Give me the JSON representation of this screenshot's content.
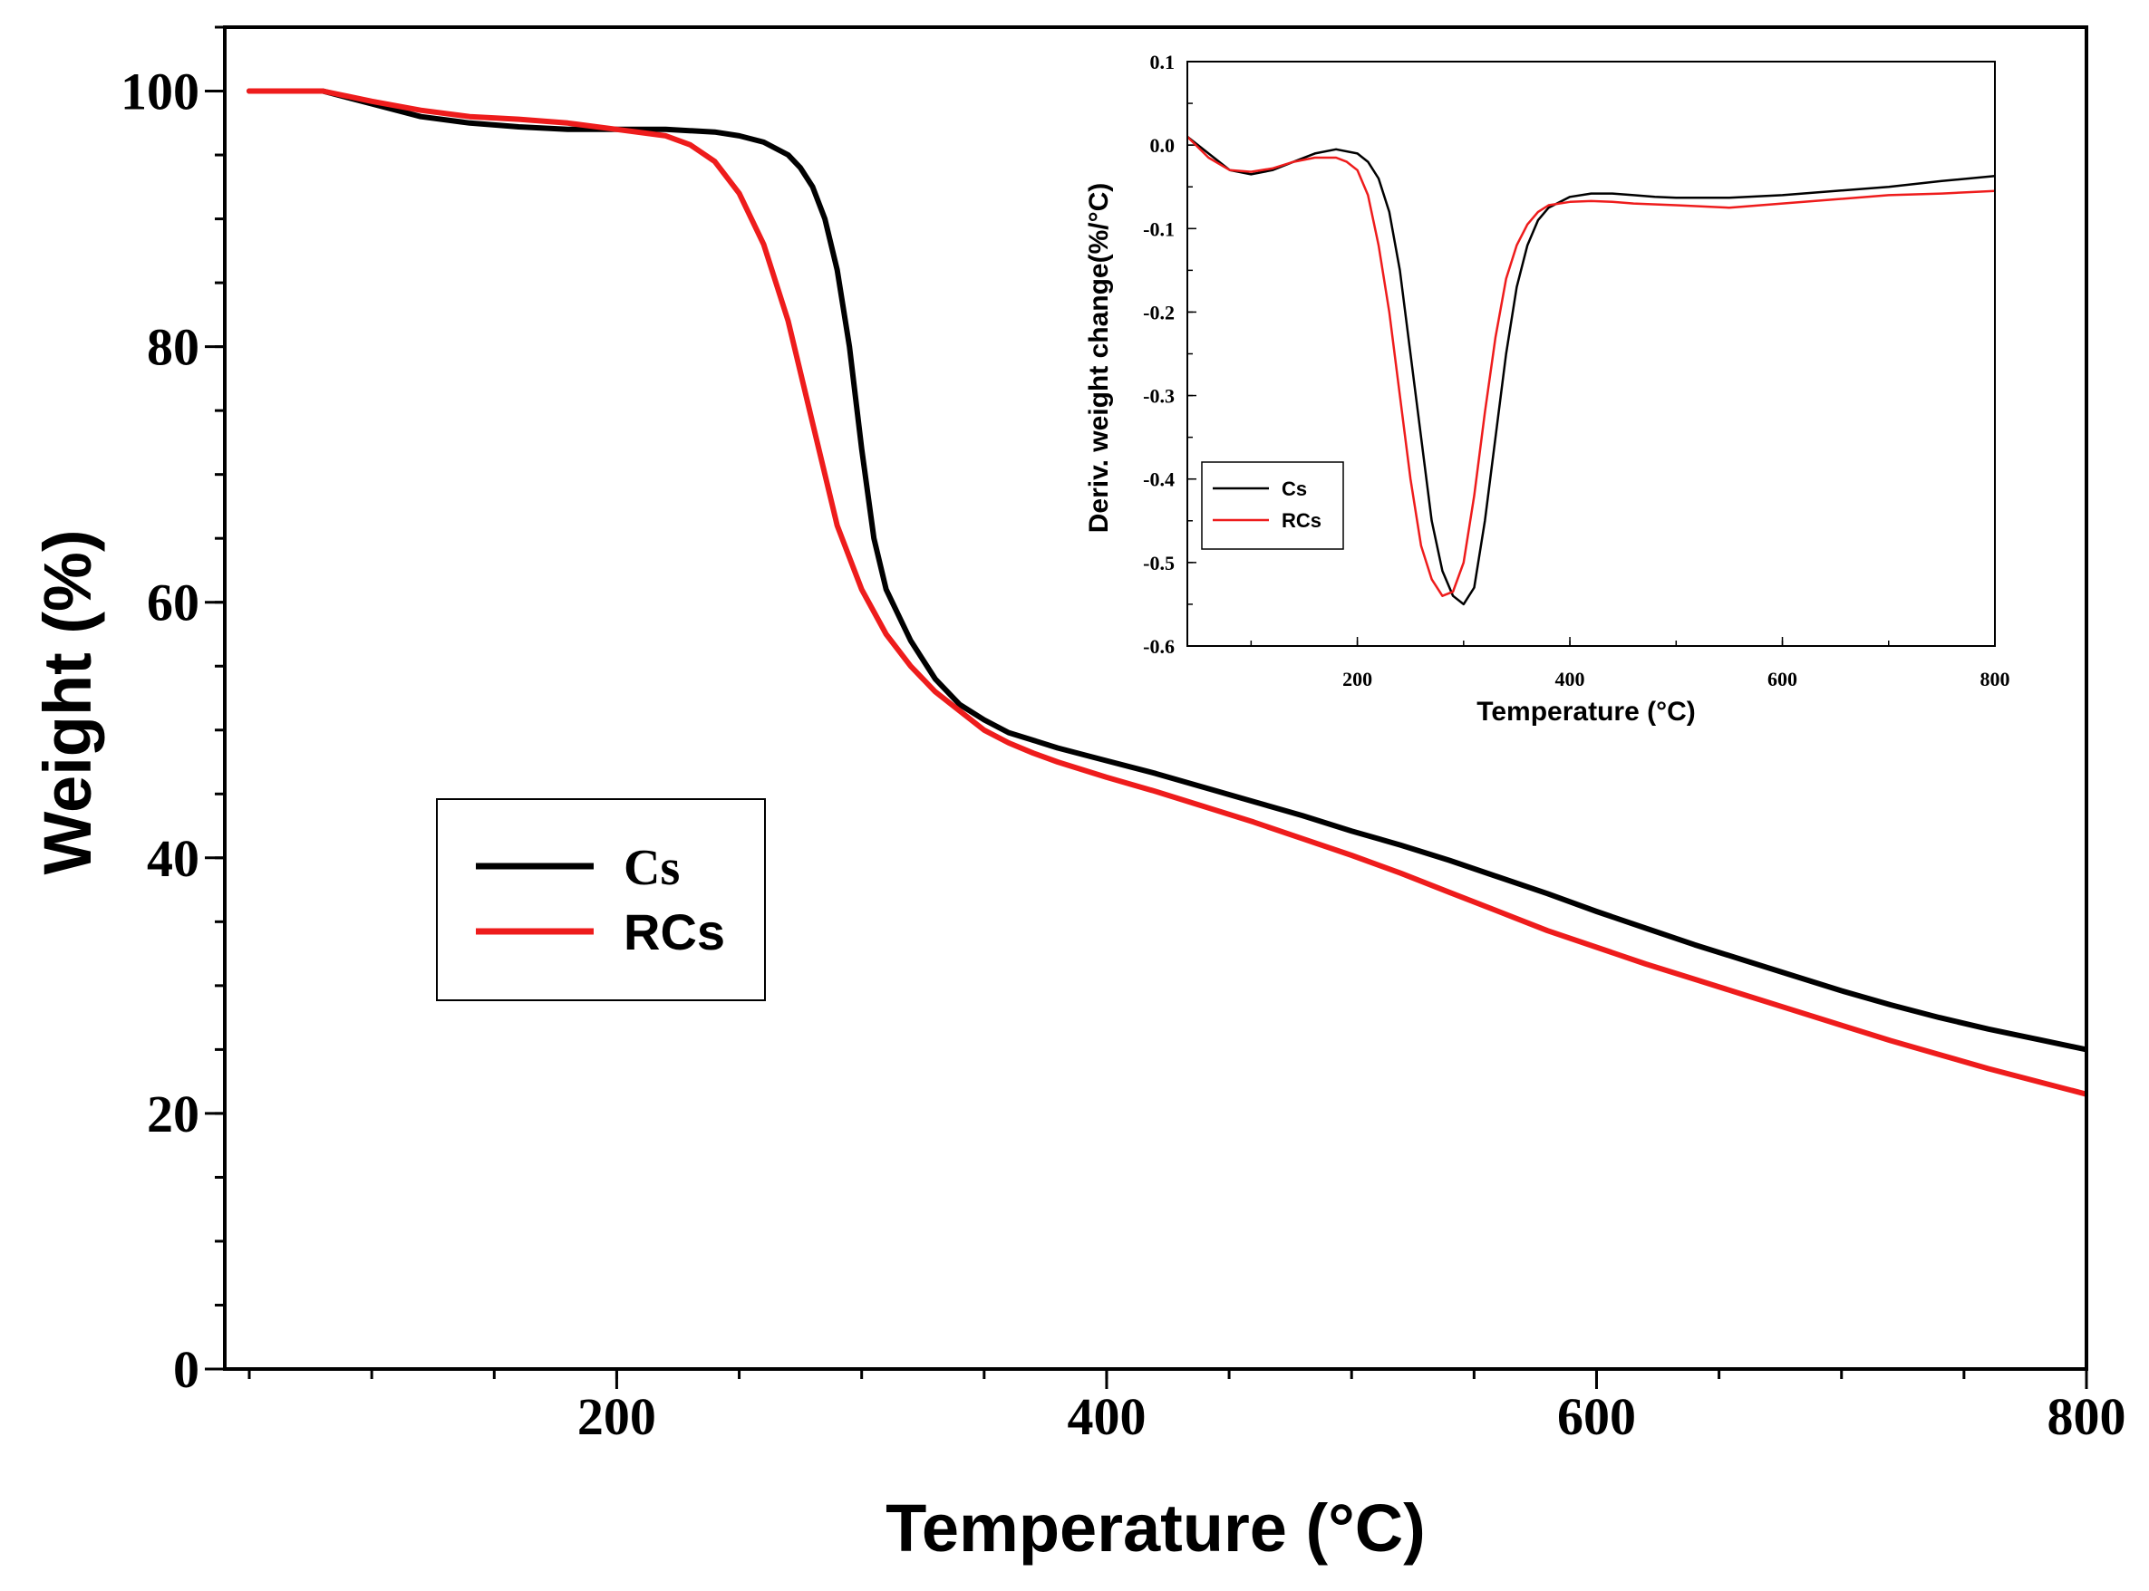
{
  "chart_data": [
    {
      "id": "main",
      "type": "line",
      "title": "",
      "xlabel": "Temperature (°C)",
      "ylabel": "Weight  (%)",
      "xlim": [
        40,
        800
      ],
      "ylim": [
        0,
        105
      ],
      "xticks": [
        200,
        400,
        600,
        800
      ],
      "yticks": [
        0,
        20,
        40,
        60,
        80,
        100
      ],
      "legend_position": "center-left",
      "series": [
        {
          "name": "Cs",
          "color": "#000000",
          "x": [
            50,
            80,
            100,
            120,
            140,
            160,
            180,
            200,
            220,
            240,
            250,
            260,
            270,
            275,
            280,
            285,
            290,
            295,
            300,
            305,
            310,
            320,
            330,
            340,
            350,
            360,
            370,
            380,
            400,
            420,
            440,
            460,
            480,
            500,
            520,
            540,
            560,
            580,
            600,
            620,
            640,
            660,
            680,
            700,
            720,
            740,
            760,
            780,
            800
          ],
          "y": [
            100,
            100,
            99,
            98,
            97.5,
            97.2,
            97,
            97,
            97,
            96.8,
            96.5,
            96,
            95,
            94,
            92.5,
            90,
            86,
            80,
            72,
            65,
            61,
            57,
            54,
            52,
            50.8,
            49.8,
            49.2,
            48.6,
            47.6,
            46.6,
            45.5,
            44.4,
            43.3,
            42.1,
            41,
            39.8,
            38.5,
            37.2,
            35.8,
            34.5,
            33.2,
            32,
            30.8,
            29.6,
            28.5,
            27.5,
            26.6,
            25.8,
            25
          ]
        },
        {
          "name": "RCs",
          "color": "#ee1c1c",
          "x": [
            50,
            80,
            100,
            120,
            140,
            160,
            180,
            200,
            220,
            230,
            240,
            250,
            260,
            270,
            280,
            290,
            300,
            310,
            320,
            330,
            340,
            350,
            360,
            370,
            380,
            400,
            420,
            440,
            460,
            480,
            500,
            520,
            540,
            560,
            580,
            600,
            620,
            640,
            660,
            680,
            700,
            720,
            740,
            760,
            780,
            800
          ],
          "y": [
            100,
            100,
            99.2,
            98.5,
            98,
            97.8,
            97.5,
            97,
            96.5,
            95.8,
            94.5,
            92,
            88,
            82,
            74,
            66,
            61,
            57.5,
            55,
            53,
            51.5,
            50,
            49,
            48.2,
            47.5,
            46.3,
            45.2,
            44,
            42.8,
            41.5,
            40.2,
            38.8,
            37.3,
            35.8,
            34.3,
            33,
            31.7,
            30.5,
            29.3,
            28.1,
            26.9,
            25.7,
            24.6,
            23.5,
            22.5,
            21.5
          ]
        }
      ]
    },
    {
      "id": "inset",
      "type": "line",
      "title": "",
      "xlabel": "Temperature (°C)",
      "ylabel": "Deriv. weight change(%/°C)",
      "xlim": [
        40,
        800
      ],
      "ylim": [
        -0.6,
        0.1
      ],
      "xticks": [
        200,
        400,
        600,
        800
      ],
      "yticks": [
        -0.6,
        -0.5,
        -0.4,
        -0.3,
        -0.2,
        -0.1,
        0.0,
        0.1
      ],
      "ytick_labels": [
        "-0.6",
        "-0.5",
        "-0.4",
        "-0.3",
        "-0.2",
        "-0.1",
        "0.0",
        "0.1"
      ],
      "legend_position": "bottom-left",
      "series": [
        {
          "name": "Cs",
          "color": "#000000",
          "x": [
            40,
            60,
            80,
            100,
            120,
            140,
            160,
            180,
            200,
            210,
            220,
            230,
            240,
            250,
            260,
            270,
            280,
            290,
            300,
            310,
            320,
            330,
            340,
            350,
            360,
            370,
            380,
            400,
            420,
            440,
            460,
            480,
            500,
            550,
            600,
            650,
            700,
            750,
            800
          ],
          "y": [
            0.01,
            -0.01,
            -0.03,
            -0.035,
            -0.03,
            -0.02,
            -0.01,
            -0.005,
            -0.01,
            -0.02,
            -0.04,
            -0.08,
            -0.15,
            -0.25,
            -0.35,
            -0.45,
            -0.51,
            -0.54,
            -0.55,
            -0.53,
            -0.45,
            -0.35,
            -0.25,
            -0.17,
            -0.12,
            -0.09,
            -0.075,
            -0.062,
            -0.058,
            -0.058,
            -0.06,
            -0.062,
            -0.063,
            -0.063,
            -0.06,
            -0.055,
            -0.05,
            -0.043,
            -0.037
          ]
        },
        {
          "name": "RCs",
          "color": "#ee1c1c",
          "x": [
            40,
            60,
            80,
            100,
            120,
            140,
            160,
            180,
            190,
            200,
            210,
            220,
            230,
            240,
            250,
            260,
            270,
            280,
            290,
            300,
            310,
            320,
            330,
            340,
            350,
            360,
            370,
            380,
            400,
            420,
            440,
            460,
            500,
            550,
            600,
            650,
            700,
            750,
            800
          ],
          "y": [
            0.01,
            -0.015,
            -0.03,
            -0.032,
            -0.028,
            -0.02,
            -0.015,
            -0.015,
            -0.02,
            -0.03,
            -0.06,
            -0.12,
            -0.2,
            -0.3,
            -0.4,
            -0.48,
            -0.52,
            -0.54,
            -0.535,
            -0.5,
            -0.42,
            -0.32,
            -0.23,
            -0.16,
            -0.12,
            -0.095,
            -0.08,
            -0.072,
            -0.068,
            -0.067,
            -0.068,
            -0.07,
            -0.072,
            -0.075,
            -0.07,
            -0.065,
            -0.06,
            -0.058,
            -0.055
          ]
        }
      ]
    }
  ]
}
